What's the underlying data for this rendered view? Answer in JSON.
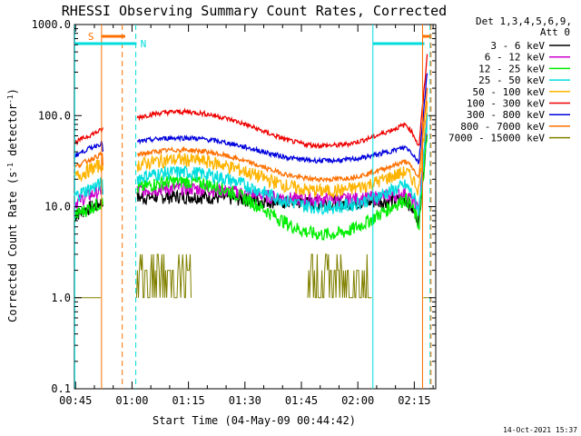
{
  "chart_data": {
    "type": "line",
    "title": "RHESSI Observing Summary Count Rates, Corrected",
    "xlabel": "Start Time (04-May-09 00:44:42)",
    "ylabel": "Corrected Count Rate (s⁻¹ detector⁻¹)",
    "ylabel_parts": [
      "Corrected Count Rate (s",
      "-1",
      " detector",
      "-1",
      ")"
    ],
    "x_unit": "minutes since 00:44:42",
    "xlim": [
      0,
      96
    ],
    "ylim": [
      0.1,
      1000
    ],
    "log_y": true,
    "x_ticks": [
      {
        "t": 0.3,
        "label": "00:45"
      },
      {
        "t": 15.3,
        "label": "01:00"
      },
      {
        "t": 30.3,
        "label": "01:15"
      },
      {
        "t": 45.3,
        "label": "01:30"
      },
      {
        "t": 60.3,
        "label": "01:45"
      },
      {
        "t": 75.3,
        "label": "02:00"
      },
      {
        "t": 90.3,
        "label": "02:15"
      }
    ],
    "y_ticks": [
      {
        "v": 0.1,
        "label": "0.1"
      },
      {
        "v": 1,
        "label": "1.0"
      },
      {
        "v": 10,
        "label": "10.0"
      },
      {
        "v": 100,
        "label": "100.0"
      },
      {
        "v": 1000,
        "label": "1000.0"
      }
    ],
    "legend": {
      "header": [
        "Det 1,3,4,5,6,9,",
        "Att 0"
      ],
      "placement": "right"
    },
    "series": [
      {
        "name": "3 - 6 keV",
        "color": "#000000",
        "start": 8,
        "day": 13,
        "mid": 11,
        "end": 7
      },
      {
        "name": "6 - 12 keV",
        "color": "#cc00cc",
        "start": 11,
        "day": 16,
        "mid": 12,
        "end": 9
      },
      {
        "name": "12 - 25 keV",
        "color": "#00ee00",
        "start": 8,
        "day": 19,
        "mid": 5,
        "end": 6
      },
      {
        "name": "25 - 50 keV",
        "color": "#00dddd",
        "start": 13,
        "day": 24,
        "mid": 10,
        "end": 9
      },
      {
        "name": "50 - 100 keV",
        "color": "#ffb400",
        "start": 21,
        "day": 33,
        "mid": 15,
        "end": 15
      },
      {
        "name": "100 - 300 keV",
        "color": "#ee0000",
        "start": 50,
        "day": 110,
        "mid": 47,
        "end": 45
      },
      {
        "name": "300 - 800 keV",
        "color": "#0000dd",
        "start": 36,
        "day": 57,
        "mid": 32,
        "end": 30
      },
      {
        "name": "800 - 7000 keV",
        "color": "#ff7000",
        "start": 27,
        "day": 42,
        "mid": 20,
        "end": 20
      },
      {
        "name": "7000 - 15000 keV",
        "color": "#808000",
        "start": 1,
        "day": 1.2,
        "mid": 1,
        "end": 1
      }
    ],
    "events": {
      "saa": {
        "label": "S",
        "color": "#ff7000",
        "start": 6.5,
        "end": 13.5,
        "solid_x": 7.2,
        "dashed_x": 12.7
      },
      "night": [
        {
          "label": "N",
          "color": "#00dddd",
          "start": 0,
          "end": 16.5,
          "solid_x": 0.1,
          "dashed_x": 16.3
        },
        {
          "label": "",
          "color": "#00dddd",
          "start": 79.3,
          "end": 96,
          "solid_x": 79.3,
          "dashed_x": 94.5
        }
      ],
      "saa2": {
        "color": "#ff7000",
        "solid_x": 92.5,
        "dashed_x": 94.5,
        "bar_start": 92.6,
        "bar_end": 94.5
      }
    }
  },
  "footer": {
    "timestamp": "14-Oct-2021 15:37"
  }
}
